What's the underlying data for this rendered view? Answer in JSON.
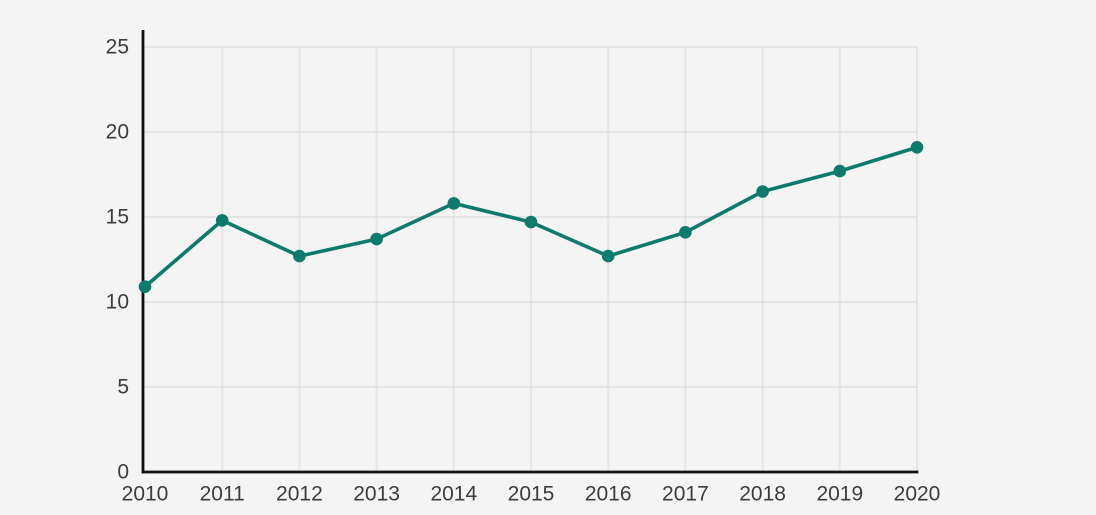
{
  "chart_data": {
    "type": "line",
    "categories": [
      "2010",
      "2011",
      "2012",
      "2013",
      "2014",
      "2015",
      "2016",
      "2017",
      "2018",
      "2019",
      "2020"
    ],
    "values": [
      10.9,
      14.8,
      12.7,
      13.7,
      15.8,
      14.7,
      12.7,
      14.1,
      16.5,
      17.7,
      19.1
    ],
    "title": "",
    "xlabel": "",
    "ylabel": "",
    "ylim": [
      0,
      26
    ],
    "yticks": [
      0,
      5,
      10,
      15,
      20,
      25
    ],
    "grid": true,
    "legend": false,
    "legend_position": "none",
    "marker": "circle"
  },
  "style": {
    "background_color": "#f4f4f4",
    "line_color": "#0c7b6b",
    "marker_color": "#0c7b6b",
    "h_grid_color": "#dcdcdc",
    "v_grid_color": "#e6e6e6",
    "axis_color": "#111111",
    "tick_label_color": "#3c3c3c"
  }
}
